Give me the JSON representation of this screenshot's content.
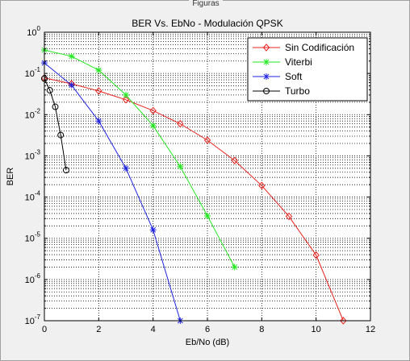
{
  "window": {
    "title": "Figuras"
  },
  "chart_data": {
    "type": "line",
    "title": "BER Vs. EbNo - Modulación QPSK",
    "xlabel": "Eb/No (dB)",
    "ylabel": "BER",
    "xlim": [
      0,
      12
    ],
    "ylim": [
      1e-07,
      1
    ],
    "yscale": "log",
    "grid": true,
    "legend_position": "top-right",
    "x_ticks": [
      "0",
      "2",
      "4",
      "6",
      "8",
      "10",
      "12"
    ],
    "y_ticks": [
      {
        "base": "10",
        "exp": "0"
      },
      {
        "base": "10",
        "exp": "-1"
      },
      {
        "base": "10",
        "exp": "-2"
      },
      {
        "base": "10",
        "exp": "-3"
      },
      {
        "base": "10",
        "exp": "-4"
      },
      {
        "base": "10",
        "exp": "-5"
      },
      {
        "base": "10",
        "exp": "-6"
      },
      {
        "base": "10",
        "exp": "-7"
      }
    ],
    "series": [
      {
        "name": "Sin Codificación",
        "color": "#e8211d",
        "marker": "diamond",
        "x": [
          0,
          1,
          2,
          3,
          4,
          5,
          6,
          7,
          8,
          9,
          10,
          11
        ],
        "y": [
          0.078,
          0.056,
          0.0375,
          0.023,
          0.0125,
          0.006,
          0.0024,
          0.00077,
          0.00019,
          3.4e-05,
          3.9e-06,
          1e-07
        ]
      },
      {
        "name": "Viterbi",
        "color": "#22e81e",
        "marker": "star",
        "x": [
          0,
          1,
          2,
          3,
          4,
          5,
          6,
          7
        ],
        "y": [
          0.37,
          0.26,
          0.12,
          0.03,
          0.0054,
          0.00055,
          3.5e-05,
          2e-06
        ]
      },
      {
        "name": "Soft",
        "color": "#1e22e0",
        "marker": "star",
        "x": [
          0,
          1,
          2,
          3,
          4,
          5
        ],
        "y": [
          0.18,
          0.052,
          0.007,
          0.0005,
          1.6e-05,
          1e-07
        ]
      },
      {
        "name": "Turbo",
        "color": "#000000",
        "marker": "circle",
        "x": [
          0,
          0.2,
          0.4,
          0.6,
          0.8
        ],
        "y": [
          0.075,
          0.039,
          0.0155,
          0.0032,
          0.00045
        ]
      }
    ]
  }
}
